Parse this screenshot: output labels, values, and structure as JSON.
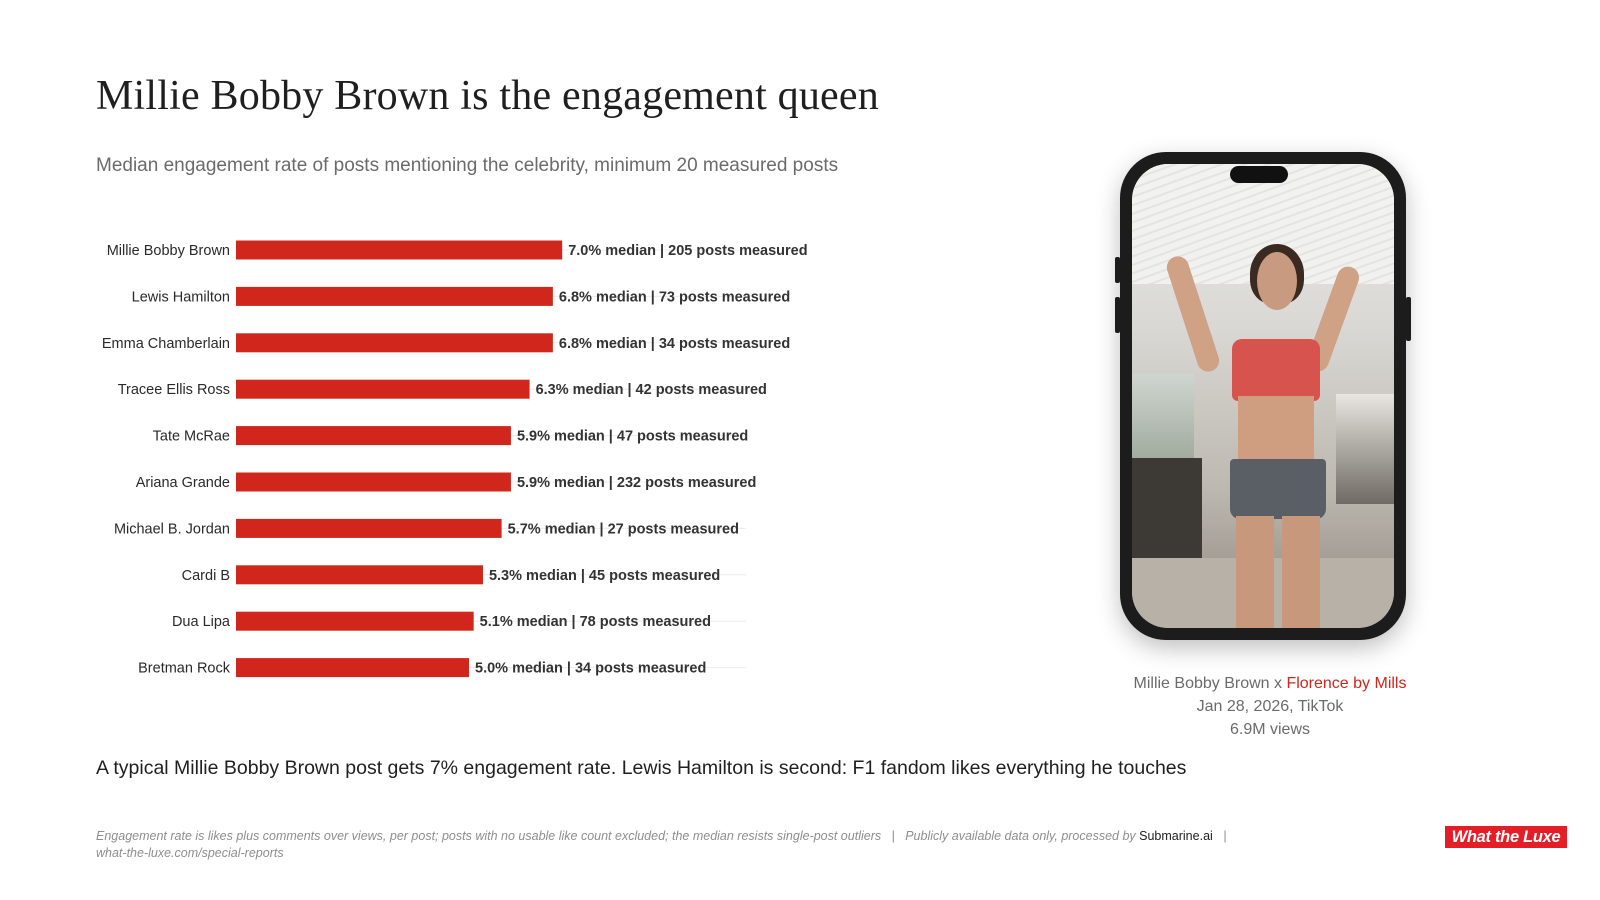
{
  "header": {
    "title": "Millie Bobby Brown is the engagement queen",
    "subtitle": "Median engagement rate of posts mentioning the celebrity, minimum 20 measured posts"
  },
  "chart_data": {
    "type": "bar",
    "orientation": "horizontal",
    "title": "",
    "xlabel": "",
    "ylabel": "",
    "unit": "% median",
    "categories": [
      "Millie Bobby Brown",
      "Lewis Hamilton",
      "Emma Chamberlain",
      "Tracee Ellis Ross",
      "Tate McRae",
      "Ariana Grande",
      "Michael B. Jordan",
      "Cardi B",
      "Dua Lipa",
      "Bretman Rock"
    ],
    "values": [
      7.0,
      6.8,
      6.8,
      6.3,
      5.9,
      5.9,
      5.7,
      5.3,
      5.1,
      5.0
    ],
    "labels": [
      "7.0% median  |  205 posts measured",
      "6.8% median  |  73 posts measured",
      "6.8% median  |  34 posts measured",
      "6.3% median  |  42 posts measured",
      "5.9% median  |  47 posts measured",
      "5.9% median  |  232 posts measured",
      "5.7% median  |  27 posts measured",
      "5.3% median  |  45 posts measured",
      "5.1% median  |  78 posts measured",
      "5.0% median  |  34 posts measured"
    ],
    "posts_measured": [
      205,
      73,
      34,
      42,
      47,
      232,
      27,
      45,
      78,
      34
    ],
    "bar_color": "#d0261c",
    "grid": false,
    "legend": "none"
  },
  "media": {
    "phone_content": "TikTok video still of Millie Bobby Brown",
    "caption_line1_prefix": "Millie Bobby Brown x ",
    "caption_line1_brand": "Florence by Mills",
    "caption_line2": "Jan 28, 2026, TikTok",
    "caption_line3": "6.9M views"
  },
  "takeaway": "A typical Millie Bobby Brown post gets 7% engagement rate. Lewis Hamilton is second: F1 fandom likes everything he touches",
  "footer": {
    "note": "Engagement rate is likes plus comments over views, per post; posts with no usable like count excluded; the median resists single-post outliers",
    "separator": "|",
    "source_prefix": "Publicly available data only, processed by ",
    "source_brand": "Submarine.ai",
    "url": "what-the-luxe.com/special-reports",
    "logo": "What the Luxe"
  },
  "colors": {
    "accent": "#d0261c",
    "logo": "#e41e26"
  }
}
